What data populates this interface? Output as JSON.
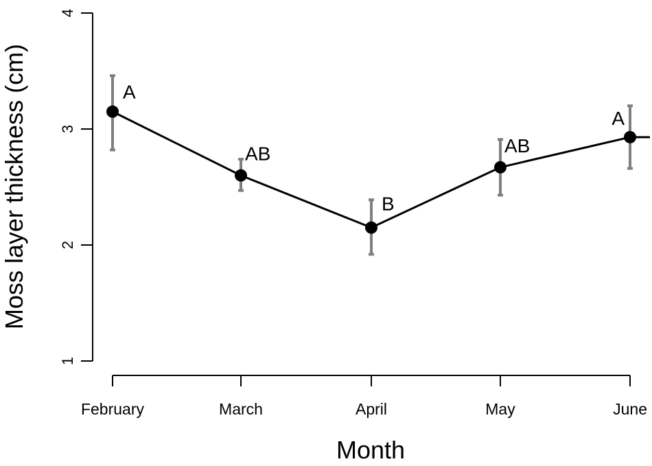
{
  "chart_data": {
    "type": "line",
    "title": "",
    "xlabel": "Month",
    "ylabel": "Moss layer thickness (cm)",
    "categories": [
      "February",
      "March",
      "April",
      "May",
      "June"
    ],
    "y_ticks": [
      "1",
      "2",
      "3",
      "4"
    ],
    "ylim": [
      1,
      4
    ],
    "grid": false,
    "legend": "none",
    "series": [
      {
        "values": [
          3.15,
          2.6,
          2.15,
          2.67,
          2.93
        ],
        "error_lower": [
          2.82,
          2.47,
          1.92,
          2.43,
          2.66
        ],
        "error_upper": [
          3.46,
          2.74,
          2.39,
          2.91,
          3.2
        ],
        "labels": [
          "A",
          "AB",
          "B",
          "AB",
          "A"
        ]
      }
    ],
    "colors": {
      "line": "#000000",
      "point": "#000000",
      "error_bar": "#7f7f7f",
      "axis": "#000000"
    }
  }
}
